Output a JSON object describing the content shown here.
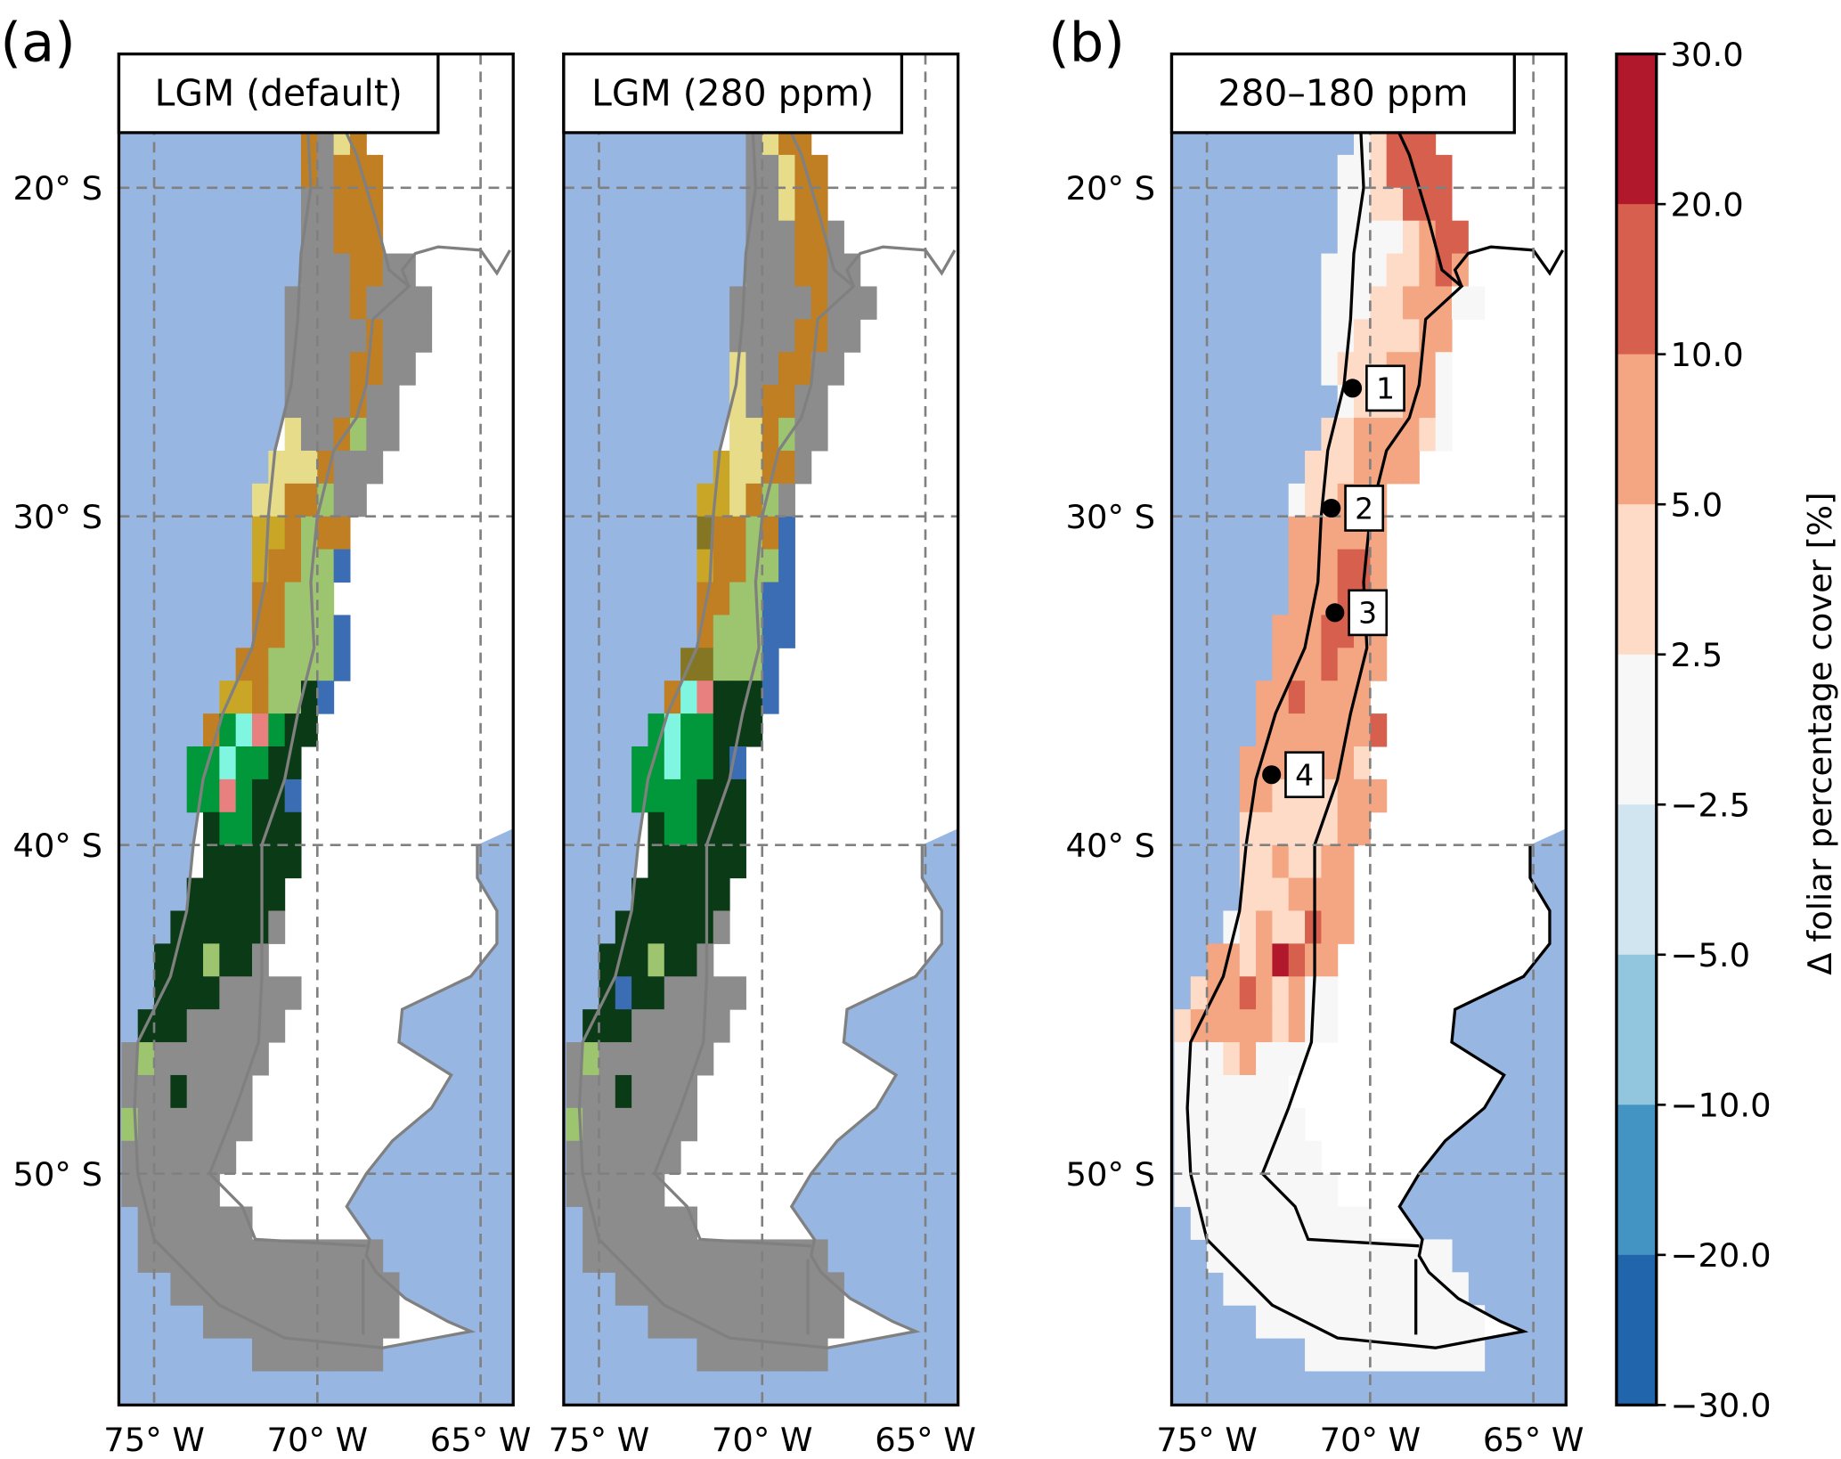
{
  "figure": {
    "panel_labels": [
      "(a)",
      "(b)"
    ],
    "colorbar": {
      "label": "Δ foliar percentage cover [%]",
      "ticks": [
        "30.0",
        "20.0",
        "10.0",
        "5.0",
        "2.5",
        "−2.5",
        "−5.0",
        "−10.0",
        "−20.0",
        "−30.0"
      ],
      "colors": [
        "#B2182B",
        "#D6604D",
        "#F4A582",
        "#FDDBC7",
        "#F7F7F7",
        "#D1E5F0",
        "#92C5DE",
        "#4393C3",
        "#2166AC"
      ]
    },
    "lat_ticks": [
      {
        "value": -20,
        "label": "20° S"
      },
      {
        "value": -30,
        "label": "30° S"
      },
      {
        "value": -40,
        "label": "40° S"
      },
      {
        "value": -50,
        "label": "50° S"
      }
    ],
    "lon_ticks": [
      {
        "value": -75,
        "label": "75° W"
      },
      {
        "value": -70,
        "label": "70° W"
      },
      {
        "value": -65,
        "label": "65° W"
      }
    ],
    "extent": {
      "lon": [
        -76.08,
        -64.0
      ],
      "lat": [
        -15.93,
        -57.04
      ]
    },
    "colors": {
      "ocean": "#97B6E1",
      "land": "#FFFFFF",
      "grid": "#808080",
      "boundary_gray": "#808080",
      "boundary_black": "#000000"
    },
    "pft_colors": {
      "G": "#8C8C8C",
      "B": "#C07F22",
      "Y": "#E6DC8A",
      "M": "#C9A626",
      "L": "#9DC46F",
      "D": "#0A3A16",
      "E": "#00983A",
      "C": "#80F5E0",
      "P": "#E88080",
      "U": "#3B6DB5",
      "V": "#857623"
    },
    "panels": [
      {
        "title": "LGM (default)",
        "kind": "pft",
        "show_lat_labels": true,
        "rows": [
          [
            -17,
            -70.5,
            "YGBB"
          ],
          [
            -18,
            -70.5,
            "BGYB"
          ],
          [
            -19,
            -70.5,
            "BGBBB"
          ],
          [
            -20,
            -70.5,
            "GGBBB"
          ],
          [
            -21,
            -70.5,
            "GGBBB"
          ],
          [
            -22,
            -70.5,
            "GGGBBGG"
          ],
          [
            -23,
            -71,
            "GGGGBGGGG"
          ],
          [
            -24,
            -71,
            "GGGGGBGGG"
          ],
          [
            -25,
            -71,
            "GGGGBBGG"
          ],
          [
            -26,
            -71,
            "GGGGBGG"
          ],
          [
            -27,
            -71,
            "YGGBLGG"
          ],
          [
            -28,
            -71.5,
            "YYYBGGG"
          ],
          [
            -29,
            -72,
            "YYBBLGG"
          ],
          [
            -30,
            -72,
            "MMBLBB"
          ],
          [
            -31,
            -72,
            "MBBLLU"
          ],
          [
            -32,
            -72,
            "BBLLL"
          ],
          [
            -33,
            -72,
            "BBLLLU"
          ],
          [
            -34,
            -72.5,
            "BBLLLLU"
          ],
          [
            -35,
            -73,
            "MMBLLDU"
          ],
          [
            -36,
            -73.5,
            "BECPEDD"
          ],
          [
            -37,
            -74,
            "EECEEDD"
          ],
          [
            -38,
            -74,
            "EEPEDDU"
          ],
          [
            -39,
            -73.5,
            "DEEDDD"
          ],
          [
            -40,
            -73.5,
            "DDDDDD"
          ],
          [
            -41,
            -74,
            "DDDDDD"
          ],
          [
            -42,
            -74.5,
            "DDDDDDG"
          ],
          [
            -43,
            -75,
            "DDDLDDG"
          ],
          [
            -44,
            -75,
            "DDDDGGGGG"
          ],
          [
            -45,
            -75.5,
            "DDDGGGGGG"
          ],
          [
            -46,
            -76,
            "GLGGGGGGG"
          ],
          [
            -47,
            -76,
            "GGGDGGGG"
          ],
          [
            -48,
            -76,
            "LGGGGGGG"
          ],
          [
            -49,
            -76,
            "GGGGGGG"
          ],
          [
            -50,
            -76,
            "GGGGGG"
          ],
          [
            -51,
            -75.5,
            "GGGGGGG"
          ],
          [
            -52,
            -75.5,
            "GGGGGGGGGGGGGGG"
          ],
          [
            -53,
            -74.5,
            "GGGGGGGGGGGGGG"
          ],
          [
            -54,
            -73.5,
            "GGGGGGGGGGGG"
          ],
          [
            -55,
            -72,
            "GGGGGGGG"
          ]
        ]
      },
      {
        "title": "LGM (280 ppm)",
        "kind": "pft",
        "show_lat_labels": false,
        "rows": [
          [
            -17,
            -70.5,
            "MYBU"
          ],
          [
            -18,
            -70.5,
            "GYBB"
          ],
          [
            -19,
            -70.5,
            "GGYBB"
          ],
          [
            -20,
            -70.5,
            "GGYBB"
          ],
          [
            -21,
            -70.5,
            "GGGBBG"
          ],
          [
            -22,
            -70.5,
            "GGGBBGG"
          ],
          [
            -23,
            -71,
            "GGGGGBGGG"
          ],
          [
            -24,
            -71,
            "GGGGBBGG"
          ],
          [
            -25,
            -71,
            "YGGBBGG"
          ],
          [
            -26,
            -71,
            "YGBBGG"
          ],
          [
            -27,
            -71,
            "YYBLGG"
          ],
          [
            -28,
            -71.5,
            "MYYBBG"
          ],
          [
            -29,
            -72,
            "MMYBLG"
          ],
          [
            -30,
            -72,
            "VBBLBU"
          ],
          [
            -31,
            -72,
            "MBBLLU"
          ],
          [
            -32,
            -72,
            "BBLLUU"
          ],
          [
            -33,
            -72,
            "BLLLUU"
          ],
          [
            -34,
            -72.5,
            "VVLLLU"
          ],
          [
            -35,
            -73,
            "BCPDDDU"
          ],
          [
            -36,
            -73.5,
            "ECEEDDD"
          ],
          [
            -37,
            -74,
            "EECEEDU"
          ],
          [
            -38,
            -74,
            "EEEEDDD"
          ],
          [
            -39,
            -73.5,
            "DEEDDD"
          ],
          [
            -40,
            -73.5,
            "DDDDDD"
          ],
          [
            -41,
            -74,
            "DDDDDD"
          ],
          [
            -42,
            -74.5,
            "DDDDDDG"
          ],
          [
            -43,
            -75,
            "DDDLDDG"
          ],
          [
            -44,
            -75,
            "DUDDGGGGG"
          ],
          [
            -45,
            -75.5,
            "DDDGGGGGG"
          ],
          [
            -46,
            -76,
            "GLGGGGGGG"
          ],
          [
            -47,
            -76,
            "GGGDGGGG"
          ],
          [
            -48,
            -76,
            "LGGGGGGG"
          ],
          [
            -49,
            -76,
            "GGGGGGG"
          ],
          [
            -50,
            -76,
            "GGGGGG"
          ],
          [
            -51,
            -75.5,
            "GGGGGGG"
          ],
          [
            -52,
            -75.5,
            "GGGGGGGGGGGGGGG"
          ],
          [
            -53,
            -74.5,
            "GGGGGGGGGGGGGG"
          ],
          [
            -54,
            -73.5,
            "GGGGGGGGGGGG"
          ],
          [
            -55,
            -72,
            "GGGGGGGG"
          ]
        ]
      },
      {
        "title": "280–180 ppm",
        "kind": "diff",
        "show_lat_labels": true,
        "rows": [
          [
            -17,
            -70.5,
            "5677"
          ],
          [
            -18,
            -70.5,
            "45777"
          ],
          [
            -19,
            -71,
            "4457777"
          ],
          [
            -20,
            -71,
            "4455777"
          ],
          [
            -21,
            -71,
            "44445677"
          ],
          [
            -22,
            -71.5,
            "444455676"
          ],
          [
            -23,
            -71.5,
            "4445566644"
          ],
          [
            -24,
            -71.5,
            "44555566"
          ],
          [
            -25,
            -71.5,
            "45556664"
          ],
          [
            -26,
            -71,
            "4555664"
          ],
          [
            -27,
            -71.5,
            "55666654"
          ],
          [
            -28,
            -72,
            "5556666"
          ],
          [
            -29,
            -72.5,
            "455666"
          ],
          [
            -30,
            -72.5,
            "666666"
          ],
          [
            -31,
            -72.5,
            "666776"
          ],
          [
            -32,
            -72.5,
            "666776"
          ],
          [
            -33,
            -73,
            "6667766"
          ],
          [
            -34,
            -73,
            "6667666"
          ],
          [
            -35,
            -73.5,
            "6676666"
          ],
          [
            -36,
            -73.5,
            "66666667"
          ],
          [
            -37,
            -74,
            "66666665"
          ],
          [
            -38,
            -74,
            "665555666"
          ],
          [
            -39,
            -74,
            "55555566"
          ],
          [
            -40,
            -74,
            "5565566"
          ],
          [
            -41,
            -74,
            "5556666"
          ],
          [
            -42,
            -74.5,
            "45655766"
          ],
          [
            -43,
            -75,
            "66568766"
          ],
          [
            -44,
            -75.5,
            "566765644"
          ],
          [
            -45,
            -76,
            "5666665644"
          ],
          [
            -46,
            -76,
            "44456444"
          ],
          [
            -47,
            -76,
            "4444444"
          ],
          [
            -48,
            -76,
            "44444444"
          ],
          [
            -49,
            -76,
            "444444444"
          ],
          [
            -50,
            -76,
            "4444444444"
          ],
          [
            -51,
            -75.5,
            "44444444444"
          ],
          [
            -52,
            -75,
            "444444444444444"
          ],
          [
            -53,
            -74.5,
            "444444444444444"
          ],
          [
            -54,
            -73.5,
            "44444444444444"
          ],
          [
            -55,
            -72,
            "44444444444"
          ]
        ],
        "sites": [
          {
            "label": "1",
            "lon": -70.54,
            "lat": -26.1
          },
          {
            "label": "2",
            "lon": -71.19,
            "lat": -29.75
          },
          {
            "label": "3",
            "lon": -71.08,
            "lat": -32.93
          },
          {
            "label": "4",
            "lon": -73.02,
            "lat": -37.86
          }
        ]
      }
    ],
    "ocean_outline": [
      [
        -15.93,
        -76.08
      ],
      [
        -16,
        -70.3
      ],
      [
        -18,
        -70.3
      ],
      [
        -20,
        -70.2
      ],
      [
        -22,
        -70.5
      ],
      [
        -24,
        -70.6
      ],
      [
        -26,
        -70.8
      ],
      [
        -28,
        -71.3
      ],
      [
        -30,
        -71.5
      ],
      [
        -32,
        -71.6
      ],
      [
        -34,
        -72
      ],
      [
        -36,
        -72.9
      ],
      [
        -38,
        -73.5
      ],
      [
        -40,
        -73.8
      ],
      [
        -42,
        -74
      ],
      [
        -44,
        -74.5
      ],
      [
        -46,
        -75.5
      ],
      [
        -48,
        -75.6
      ],
      [
        -50,
        -75.5
      ],
      [
        -52,
        -75
      ],
      [
        -53,
        -74
      ],
      [
        -54,
        -73
      ],
      [
        -55,
        -71
      ],
      [
        -55.3,
        -68
      ],
      [
        -54.8,
        -65.3
      ],
      [
        -54.5,
        -66
      ],
      [
        -53.8,
        -67.3
      ],
      [
        -53,
        -68.2
      ],
      [
        -52.5,
        -68.5
      ],
      [
        -52,
        -68.4
      ],
      [
        -51,
        -69.1
      ],
      [
        -50,
        -68.5
      ],
      [
        -49,
        -67.7
      ],
      [
        -48,
        -66.5
      ],
      [
        -47,
        -65.9
      ],
      [
        -46,
        -67.5
      ],
      [
        -45,
        -67.4
      ],
      [
        -44,
        -65.3
      ],
      [
        -43,
        -64.5
      ],
      [
        -42,
        -64.5
      ],
      [
        -41,
        -65.1
      ],
      [
        -40,
        -65.1
      ],
      [
        -39.5,
        -64
      ],
      [
        -57.04,
        -64
      ],
      [
        -57.04,
        -76.08
      ]
    ],
    "border_lines": [
      [
        [
          -17.5,
          -69.5
        ],
        [
          -19,
          -68.8
        ],
        [
          -21,
          -68.2
        ],
        [
          -22.5,
          -67.8
        ],
        [
          -23,
          -67.2
        ],
        [
          -24,
          -68.3
        ],
        [
          -26,
          -68.5
        ],
        [
          -27,
          -68.8
        ],
        [
          -28,
          -69.5
        ],
        [
          -30,
          -70
        ],
        [
          -32,
          -70.2
        ],
        [
          -34,
          -70.1
        ],
        [
          -36,
          -70.6
        ],
        [
          -38,
          -71
        ],
        [
          -40,
          -71.7
        ],
        [
          -42,
          -71.7
        ],
        [
          -44,
          -71.7
        ],
        [
          -46,
          -71.8
        ],
        [
          -48,
          -72.5
        ],
        [
          -50,
          -73.3
        ],
        [
          -51,
          -72.3
        ],
        [
          -52,
          -71.9
        ],
        [
          -52.2,
          -68.5
        ]
      ],
      [
        [
          -23,
          -67.2
        ],
        [
          -22.5,
          -67.4
        ],
        [
          -22,
          -67
        ],
        [
          -21.8,
          -66.3
        ],
        [
          -21.9,
          -65
        ],
        [
          -22.6,
          -64.5
        ],
        [
          -21.9,
          -64.1
        ]
      ],
      [
        [
          -52.6,
          -68.6
        ],
        [
          -54.9,
          -68.6
        ]
      ]
    ]
  }
}
